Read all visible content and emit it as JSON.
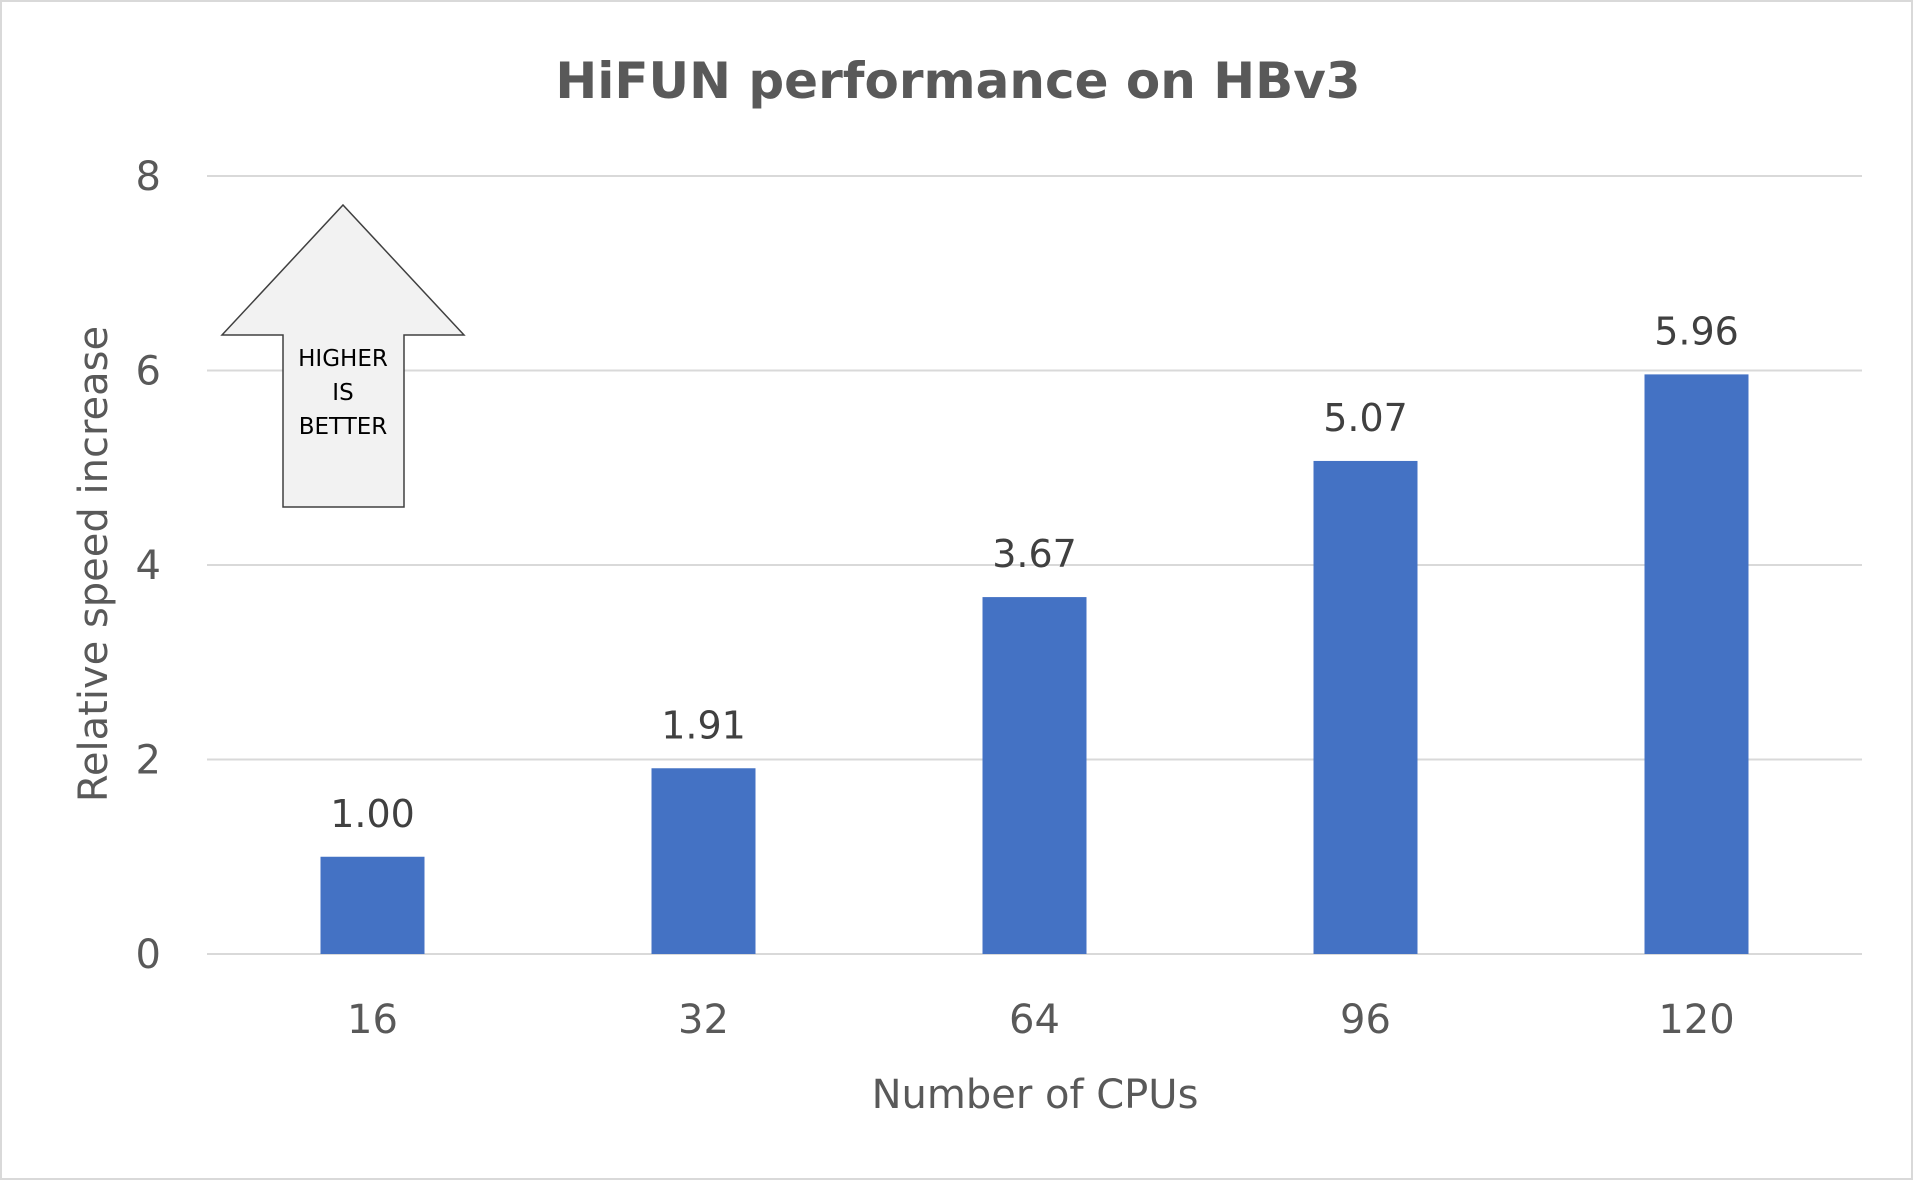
{
  "chart_data": {
    "type": "bar",
    "title": "HiFUN performance on HBv3",
    "xlabel": "Number of CPUs",
    "ylabel": "Relative speed increase",
    "categories": [
      "16",
      "32",
      "64",
      "96",
      "120"
    ],
    "values": [
      1.0,
      1.91,
      3.67,
      5.07,
      5.96
    ],
    "data_labels": [
      "1.00",
      "1.91",
      "3.67",
      "5.07",
      "5.96"
    ],
    "ylim": [
      0,
      8
    ],
    "yticks": [
      0,
      2,
      4,
      6,
      8
    ],
    "grid": true,
    "legend": "none",
    "bar_color": "#4472C4",
    "gridline_color": "#d9d9d9",
    "annotation": {
      "shape": "up-arrow",
      "lines": [
        "HIGHER",
        "IS",
        "BETTER"
      ],
      "fill_color": "#f2f2f2"
    }
  }
}
